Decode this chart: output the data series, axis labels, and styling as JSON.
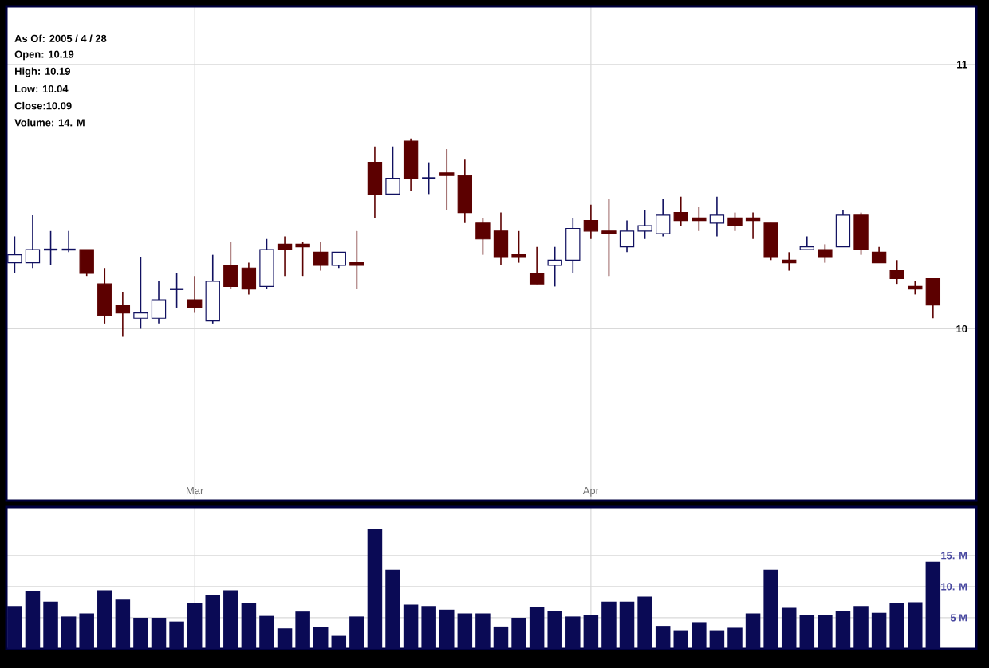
{
  "chart_data": [
    {
      "type": "candlestick",
      "categories": [
        null,
        null,
        null,
        null,
        null,
        null,
        null,
        null,
        null,
        null,
        "Mar",
        null,
        null,
        null,
        null,
        null,
        null,
        null,
        null,
        null,
        null,
        null,
        null,
        null,
        null,
        null,
        null,
        null,
        null,
        null,
        null,
        null,
        "Apr",
        null,
        null,
        null,
        null,
        null,
        null,
        null,
        null,
        null,
        null,
        null,
        null,
        null,
        null,
        null,
        null,
        null,
        null,
        null
      ],
      "ohlc": [
        [
          10.25,
          10.35,
          10.21,
          10.28
        ],
        [
          10.25,
          10.43,
          10.23,
          10.3
        ],
        [
          10.3,
          10.37,
          10.24,
          10.3
        ],
        [
          10.3,
          10.37,
          10.29,
          10.3
        ],
        [
          10.3,
          10.3,
          10.2,
          10.21
        ],
        [
          10.17,
          10.23,
          10.02,
          10.05
        ],
        [
          10.09,
          10.14,
          9.97,
          10.06
        ],
        [
          10.04,
          10.27,
          10.0,
          10.06
        ],
        [
          10.04,
          10.18,
          10.02,
          10.11
        ],
        [
          10.15,
          10.21,
          10.08,
          10.15
        ],
        [
          10.11,
          10.2,
          10.06,
          10.08
        ],
        [
          10.03,
          10.28,
          10.02,
          10.18
        ],
        [
          10.24,
          10.33,
          10.15,
          10.16
        ],
        [
          10.23,
          10.25,
          10.13,
          10.15
        ],
        [
          10.16,
          10.34,
          10.15,
          10.3
        ],
        [
          10.32,
          10.35,
          10.2,
          10.3
        ],
        [
          10.32,
          10.33,
          10.2,
          10.31
        ],
        [
          10.29,
          10.33,
          10.22,
          10.24
        ],
        [
          10.24,
          10.29,
          10.23,
          10.29
        ],
        [
          10.25,
          10.37,
          10.15,
          10.24
        ],
        [
          10.63,
          10.69,
          10.42,
          10.51
        ],
        [
          10.51,
          10.69,
          10.51,
          10.57
        ],
        [
          10.71,
          10.72,
          10.52,
          10.57
        ],
        [
          10.57,
          10.63,
          10.51,
          10.57
        ],
        [
          10.59,
          10.68,
          10.45,
          10.58
        ],
        [
          10.58,
          10.64,
          10.4,
          10.44
        ],
        [
          10.4,
          10.42,
          10.28,
          10.34
        ],
        [
          10.37,
          10.44,
          10.24,
          10.27
        ],
        [
          10.28,
          10.37,
          10.25,
          10.27
        ],
        [
          10.21,
          10.31,
          10.17,
          10.17
        ],
        [
          10.24,
          10.31,
          10.16,
          10.26
        ],
        [
          10.26,
          10.42,
          10.21,
          10.38
        ],
        [
          10.41,
          10.47,
          10.34,
          10.37
        ],
        [
          10.37,
          10.49,
          10.2,
          10.36
        ],
        [
          10.31,
          10.41,
          10.29,
          10.37
        ],
        [
          10.37,
          10.45,
          10.34,
          10.39
        ],
        [
          10.36,
          10.49,
          10.35,
          10.43
        ],
        [
          10.44,
          10.5,
          10.39,
          10.41
        ],
        [
          10.42,
          10.46,
          10.37,
          10.41
        ],
        [
          10.4,
          10.5,
          10.35,
          10.43
        ],
        [
          10.42,
          10.44,
          10.37,
          10.39
        ],
        [
          10.42,
          10.44,
          10.34,
          10.41
        ],
        [
          10.4,
          10.4,
          10.26,
          10.27
        ],
        [
          10.26,
          10.29,
          10.22,
          10.25
        ],
        [
          10.3,
          10.35,
          10.3,
          10.31
        ],
        [
          10.3,
          10.32,
          10.25,
          10.27
        ],
        [
          10.31,
          10.45,
          10.31,
          10.43
        ],
        [
          10.43,
          10.44,
          10.28,
          10.3
        ],
        [
          10.29,
          10.31,
          10.25,
          10.25
        ],
        [
          10.22,
          10.26,
          10.17,
          10.19
        ],
        [
          10.16,
          10.18,
          10.13,
          10.15
        ],
        [
          10.19,
          10.19,
          10.04,
          10.09
        ]
      ],
      "colors": [
        "#101060",
        "#101060",
        "#101060",
        "#101060",
        "#5c0000",
        "#5c0000",
        "#5c0000",
        "#101060",
        "#101060",
        "#101060",
        "#5c0000",
        "#101060",
        "#5c0000",
        "#5c0000",
        "#101060",
        "#5c0000",
        "#5c0000",
        "#5c0000",
        "#101060",
        "#5c0000",
        "#5c0000",
        "#101060",
        "#5c0000",
        "#101060",
        "#5c0000",
        "#5c0000",
        "#5c0000",
        "#5c0000",
        "#5c0000",
        "#5c0000",
        "#101060",
        "#101060",
        "#5c0000",
        "#5c0000",
        "#101060",
        "#101060",
        "#101060",
        "#5c0000",
        "#5c0000",
        "#101060",
        "#5c0000",
        "#5c0000",
        "#5c0000",
        "#5c0000",
        "#101060",
        "#5c0000",
        "#101060",
        "#5c0000",
        "#5c0000",
        "#5c0000",
        "#5c0000",
        "#5c0000"
      ],
      "ylim": [
        9.35,
        11.22
      ],
      "yticks": [
        10,
        11
      ],
      "grid": true,
      "annotations": [
        "As Of: 2005 / 4 / 28",
        "Open: 10.19",
        "High: 10.19",
        "Low: 10.04",
        "Close:10.09",
        "Volume: 14. M"
      ]
    },
    {
      "type": "bar",
      "categories": [
        null,
        null,
        null,
        null,
        null,
        null,
        null,
        null,
        null,
        null,
        null,
        null,
        null,
        null,
        null,
        null,
        null,
        null,
        null,
        null,
        null,
        null,
        null,
        null,
        null,
        null,
        null,
        null,
        null,
        null,
        null,
        null,
        null,
        null,
        null,
        null,
        null,
        null,
        null,
        null,
        null,
        null,
        null,
        null,
        null,
        null,
        null,
        null,
        null,
        null,
        null,
        null
      ],
      "values": [
        6.9,
        9.3,
        7.6,
        5.2,
        5.7,
        9.4,
        7.9,
        5.0,
        5.0,
        4.4,
        7.3,
        8.7,
        9.4,
        7.3,
        5.3,
        3.3,
        6.0,
        3.5,
        2.1,
        5.2,
        19.2,
        12.7,
        7.1,
        6.9,
        6.3,
        5.7,
        5.7,
        3.6,
        5.0,
        6.8,
        6.1,
        5.2,
        5.4,
        7.6,
        7.6,
        8.4,
        3.7,
        3.0,
        4.3,
        3.0,
        3.4,
        5.7,
        12.7,
        6.6,
        5.4,
        5.4,
        6.1,
        6.9,
        5.8,
        7.3,
        7.5,
        14
      ],
      "color": "#0a0a55",
      "ylim": [
        0,
        22.8
      ],
      "yticks": [
        {
          "value": 5,
          "label": "5 M"
        },
        {
          "value": 10,
          "label": "10. M"
        },
        {
          "value": 15,
          "label": "15. M"
        }
      ],
      "grid": true,
      "tick_labels": "y"
    }
  ]
}
